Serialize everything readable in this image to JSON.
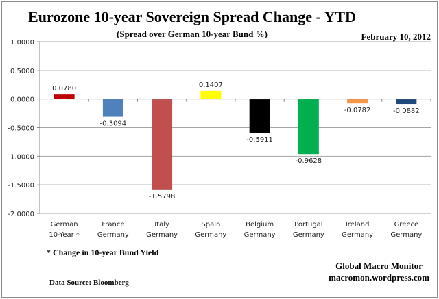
{
  "chart_data": {
    "type": "bar",
    "title": "Eurozone 10-year Sovereign Spread Change - YTD",
    "subtitle": "(Spread over German 10-year Bund %)",
    "date": "February 10, 2012",
    "categories": [
      [
        "German",
        "10-Year *"
      ],
      [
        "France",
        "Germany"
      ],
      [
        "Italy",
        "Germany"
      ],
      [
        "Spain",
        "Germany"
      ],
      [
        "Belgium",
        "Germany"
      ],
      [
        "Portugal",
        "Germany"
      ],
      [
        "Ireland",
        "Germany"
      ],
      [
        "Greece",
        "Germany"
      ]
    ],
    "values": [
      0.078,
      -0.3094,
      -1.5798,
      0.1407,
      -0.5911,
      -0.9628,
      -0.0782,
      -0.0882
    ],
    "labels": [
      "0.0780",
      "-0.3094",
      "-1.5798",
      "0.1407",
      "-0.5911",
      "-0.9628",
      "-0.0782",
      "-0.0882"
    ],
    "colors": [
      "#c00000",
      "#4f81bd",
      "#c0504d",
      "#ffff00",
      "#000000",
      "#00b050",
      "#f79646",
      "#1f497d"
    ],
    "ylim": [
      -2,
      1
    ],
    "yticks": [
      "1.0000",
      "0.5000",
      "0.0000",
      "-0.5000",
      "-1.0000",
      "-1.5000",
      "-2.0000"
    ],
    "grid": true,
    "legend": "none"
  },
  "footnote": "* Change in 10-year Bund Yield",
  "source": "Data Source:  Bloomberg",
  "credit": [
    "Global Macro Monitor",
    "macromon.wordpress.com"
  ]
}
